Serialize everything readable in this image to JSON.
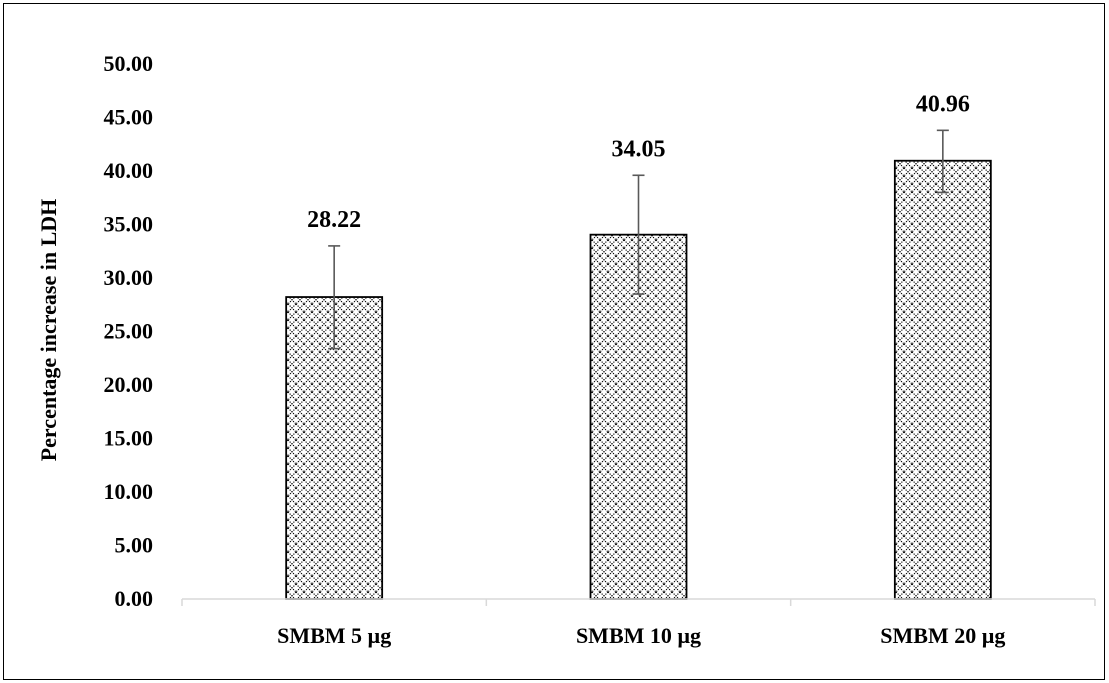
{
  "chart_data": {
    "type": "bar",
    "title": "",
    "xlabel": "",
    "ylabel": "Percentage increase in LDH",
    "categories": [
      "SMBM 5 µg",
      "SMBM 10 µg",
      "SMBM 20 µg"
    ],
    "values": [
      28.22,
      34.05,
      40.96
    ],
    "value_labels": [
      "28.22",
      "34.05",
      "40.96"
    ],
    "error_bars": [
      {
        "low": 23.4,
        "high": 33.0
      },
      {
        "low": 28.5,
        "high": 39.6
      },
      {
        "low": 38.0,
        "high": 43.8
      }
    ],
    "ylim": [
      0,
      50
    ],
    "yticks": [
      0,
      5,
      10,
      15,
      20,
      25,
      30,
      35,
      40,
      45,
      50
    ],
    "ytick_labels": [
      "0.00",
      "5.00",
      "10.00",
      "15.00",
      "20.00",
      "25.00",
      "30.00",
      "35.00",
      "40.00",
      "45.00",
      "50.00"
    ],
    "grid": false,
    "legend": "none",
    "bar_fill": "crosshatch pattern",
    "colors": {
      "bar_stroke": "#000000",
      "pattern": "#000000",
      "axis": "#d9d9d9",
      "error_bar": "#595959"
    }
  }
}
